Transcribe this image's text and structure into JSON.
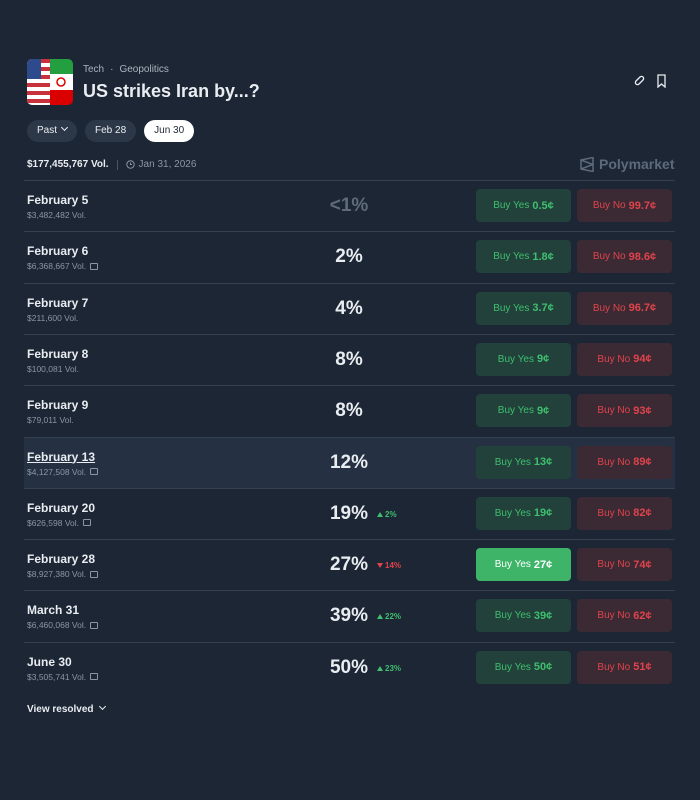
{
  "header": {
    "tags": [
      "Tech",
      "Geopolitics"
    ],
    "title": "US strikes Iran by...?"
  },
  "tabs": [
    {
      "label": "Past",
      "dropdown": true
    },
    {
      "label": "Feb 28"
    },
    {
      "label": "Jun 30",
      "active": true
    }
  ],
  "summary": {
    "volume": "$177,455,767 Vol.",
    "end_date": "Jan 31, 2026",
    "brand": "Polymarket"
  },
  "rows": [
    {
      "name": "February 5",
      "volume": "$3,482,482 Vol.",
      "chance": "<1%",
      "muted": true,
      "yes_label": "Buy Yes",
      "yes_price": "0.5¢",
      "no_label": "Buy No",
      "no_price": "99.7¢"
    },
    {
      "name": "February 6",
      "volume": "$6,368,667 Vol.",
      "gift": true,
      "chance": "2%",
      "yes_label": "Buy Yes",
      "yes_price": "1.8¢",
      "no_label": "Buy No",
      "no_price": "98.6¢"
    },
    {
      "name": "February 7",
      "volume": "$211,600 Vol.",
      "chance": "4%",
      "yes_label": "Buy Yes",
      "yes_price": "3.7¢",
      "no_label": "Buy No",
      "no_price": "96.7¢"
    },
    {
      "name": "February 8",
      "volume": "$100,081 Vol.",
      "chance": "8%",
      "yes_label": "Buy Yes",
      "yes_price": "9¢",
      "no_label": "Buy No",
      "no_price": "94¢"
    },
    {
      "name": "February 9",
      "volume": "$79,011 Vol.",
      "chance": "8%",
      "yes_label": "Buy Yes",
      "yes_price": "9¢",
      "no_label": "Buy No",
      "no_price": "93¢"
    },
    {
      "name": "February 13",
      "volume": "$4,127,508 Vol.",
      "gift": true,
      "highlighted": true,
      "chance": "12%",
      "yes_label": "Buy Yes",
      "yes_price": "13¢",
      "no_label": "Buy No",
      "no_price": "89¢"
    },
    {
      "name": "February 20",
      "volume": "$626,598 Vol.",
      "gift": true,
      "chance": "19%",
      "change": "2%",
      "direction": "up",
      "yes_label": "Buy Yes",
      "yes_price": "19¢",
      "no_label": "Buy No",
      "no_price": "82¢"
    },
    {
      "name": "February 28",
      "volume": "$8,927,380 Vol.",
      "gift": true,
      "chance": "27%",
      "change": "14%",
      "direction": "down",
      "active": "yes",
      "yes_label": "Buy Yes",
      "yes_price": "27¢",
      "no_label": "Buy No",
      "no_price": "74¢"
    },
    {
      "name": "March 31",
      "volume": "$6,460,068 Vol.",
      "gift": true,
      "chance": "39%",
      "change": "22%",
      "direction": "up",
      "yes_label": "Buy Yes",
      "yes_price": "39¢",
      "no_label": "Buy No",
      "no_price": "62¢"
    },
    {
      "name": "June 30",
      "volume": "$3,505,741 Vol.",
      "gift": true,
      "chance": "50%",
      "change": "23%",
      "direction": "up",
      "yes_label": "Buy Yes",
      "yes_price": "50¢",
      "no_label": "Buy No",
      "no_price": "51¢"
    }
  ],
  "footer": {
    "link": "View resolved"
  }
}
